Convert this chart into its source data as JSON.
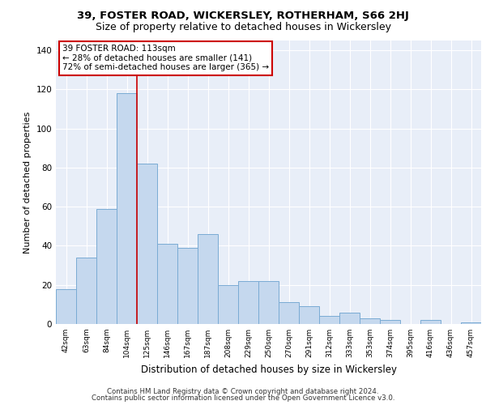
{
  "title1": "39, FOSTER ROAD, WICKERSLEY, ROTHERHAM, S66 2HJ",
  "title2": "Size of property relative to detached houses in Wickersley",
  "xlabel": "Distribution of detached houses by size in Wickersley",
  "ylabel": "Number of detached properties",
  "categories": [
    "42sqm",
    "63sqm",
    "84sqm",
    "104sqm",
    "125sqm",
    "146sqm",
    "167sqm",
    "187sqm",
    "208sqm",
    "229sqm",
    "250sqm",
    "270sqm",
    "291sqm",
    "312sqm",
    "333sqm",
    "353sqm",
    "374sqm",
    "395sqm",
    "416sqm",
    "436sqm",
    "457sqm"
  ],
  "values": [
    18,
    34,
    59,
    118,
    82,
    41,
    39,
    46,
    20,
    22,
    22,
    11,
    9,
    4,
    6,
    3,
    2,
    0,
    2,
    0,
    1
  ],
  "bar_color": "#c5d8ee",
  "bar_edge_color": "#7aabd4",
  "red_line_x": 3.5,
  "red_line_color": "#cc0000",
  "annotation_line1": "39 FOSTER ROAD: 113sqm",
  "annotation_line2": "← 28% of detached houses are smaller (141)",
  "annotation_line3": "72% of semi-detached houses are larger (365) →",
  "annotation_box_color": "#ffffff",
  "annotation_box_edge": "#cc0000",
  "ylim": [
    0,
    145
  ],
  "yticks": [
    0,
    20,
    40,
    60,
    80,
    100,
    120,
    140
  ],
  "background_color": "#e8eef8",
  "grid_color": "#ffffff",
  "title1_fontsize": 9.5,
  "title2_fontsize": 9,
  "footer1": "Contains HM Land Registry data © Crown copyright and database right 2024.",
  "footer2": "Contains public sector information licensed under the Open Government Licence v3.0."
}
